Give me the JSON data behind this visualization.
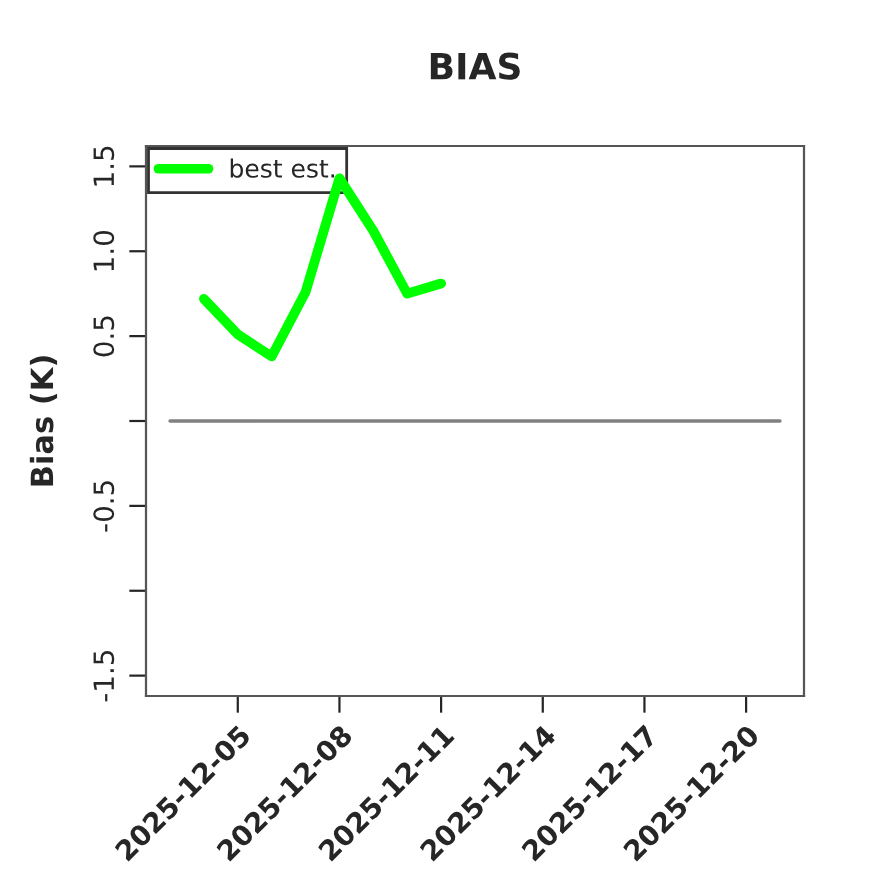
{
  "chart_data": {
    "type": "line",
    "title": "BIAS",
    "ylabel": "Bias (K)",
    "series": [
      {
        "name": "best est.",
        "color": "#00ff00",
        "x": [
          "2025-12-04",
          "2025-12-05",
          "2025-12-06",
          "2025-12-07",
          "2025-12-08",
          "2025-12-09",
          "2025-12-10",
          "2025-12-11"
        ],
        "values": [
          0.72,
          0.51,
          0.38,
          0.76,
          1.43,
          1.12,
          0.75,
          0.81
        ]
      },
      {
        "color": "#808080",
        "x": [
          "2025-12-03",
          "2025-12-21"
        ],
        "values": [
          0,
          0
        ]
      }
    ],
    "xlim": [
      "2025-12-02T07:00",
      "2025-12-21T17:00"
    ],
    "xticks": [
      "2025-12-05",
      "2025-12-08",
      "2025-12-11",
      "2025-12-14",
      "2025-12-17",
      "2025-12-20"
    ],
    "ylim": [
      -1.62,
      1.62
    ],
    "yticks": [
      1.5,
      {
        "value": 1.0,
        "label": "1.0"
      },
      0.5,
      {
        "value": 0,
        "label": null
      },
      -0.5,
      {
        "value": -1.0,
        "label": null
      },
      -1.5
    ],
    "grid": false,
    "legend": "top left"
  }
}
